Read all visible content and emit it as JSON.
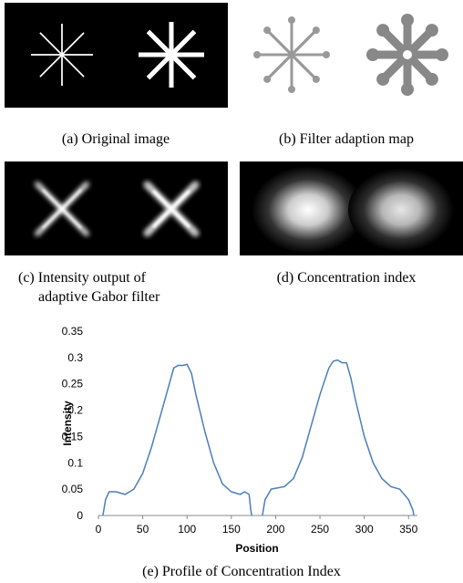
{
  "panels": [
    {
      "caption": [
        "(a) Original image"
      ]
    },
    {
      "caption": [
        "(b) Filter adaption map"
      ]
    },
    {
      "caption": [
        "(c) Intensity output of",
        "adaptive Gabor filter"
      ]
    },
    {
      "caption": [
        "(d) Concentration index"
      ]
    },
    {
      "caption": [
        "(e) Profile of Concentration Index"
      ]
    }
  ],
  "chart_data": {
    "type": "line",
    "x_label": "Position",
    "y_label": "Intensity",
    "xlim": [
      0,
      360
    ],
    "xticks": [
      0,
      50,
      100,
      150,
      200,
      250,
      300,
      350
    ],
    "ylim": [
      0,
      0.35
    ],
    "yticks": [
      0,
      0.05,
      0.1,
      0.15,
      0.2,
      0.25,
      0.3,
      0.35
    ],
    "series": [
      {
        "color": "#4a7ebb",
        "x": [
          5,
          8,
          12,
          20,
          30,
          40,
          50,
          60,
          70,
          80,
          85,
          90,
          95,
          100,
          105,
          110,
          120,
          130,
          140,
          150,
          160,
          165,
          170,
          172,
          173,
          179,
          185,
          188,
          195,
          210,
          220,
          230,
          240,
          250,
          260,
          265,
          270,
          275,
          280,
          285,
          290,
          300,
          310,
          320,
          330,
          340,
          350,
          355,
          356
        ],
        "values": [
          0,
          0.03,
          0.045,
          0.045,
          0.04,
          0.05,
          0.08,
          0.13,
          0.19,
          0.25,
          0.28,
          0.285,
          0.285,
          0.287,
          0.27,
          0.23,
          0.16,
          0.1,
          0.06,
          0.045,
          0.04,
          0.045,
          0.04,
          0.01,
          0,
          null,
          0,
          0.03,
          0.05,
          0.055,
          0.07,
          0.11,
          0.17,
          0.23,
          0.28,
          0.293,
          0.295,
          0.29,
          0.29,
          0.26,
          0.22,
          0.15,
          0.1,
          0.07,
          0.055,
          0.05,
          0.03,
          0.01,
          0
        ]
      }
    ]
  }
}
